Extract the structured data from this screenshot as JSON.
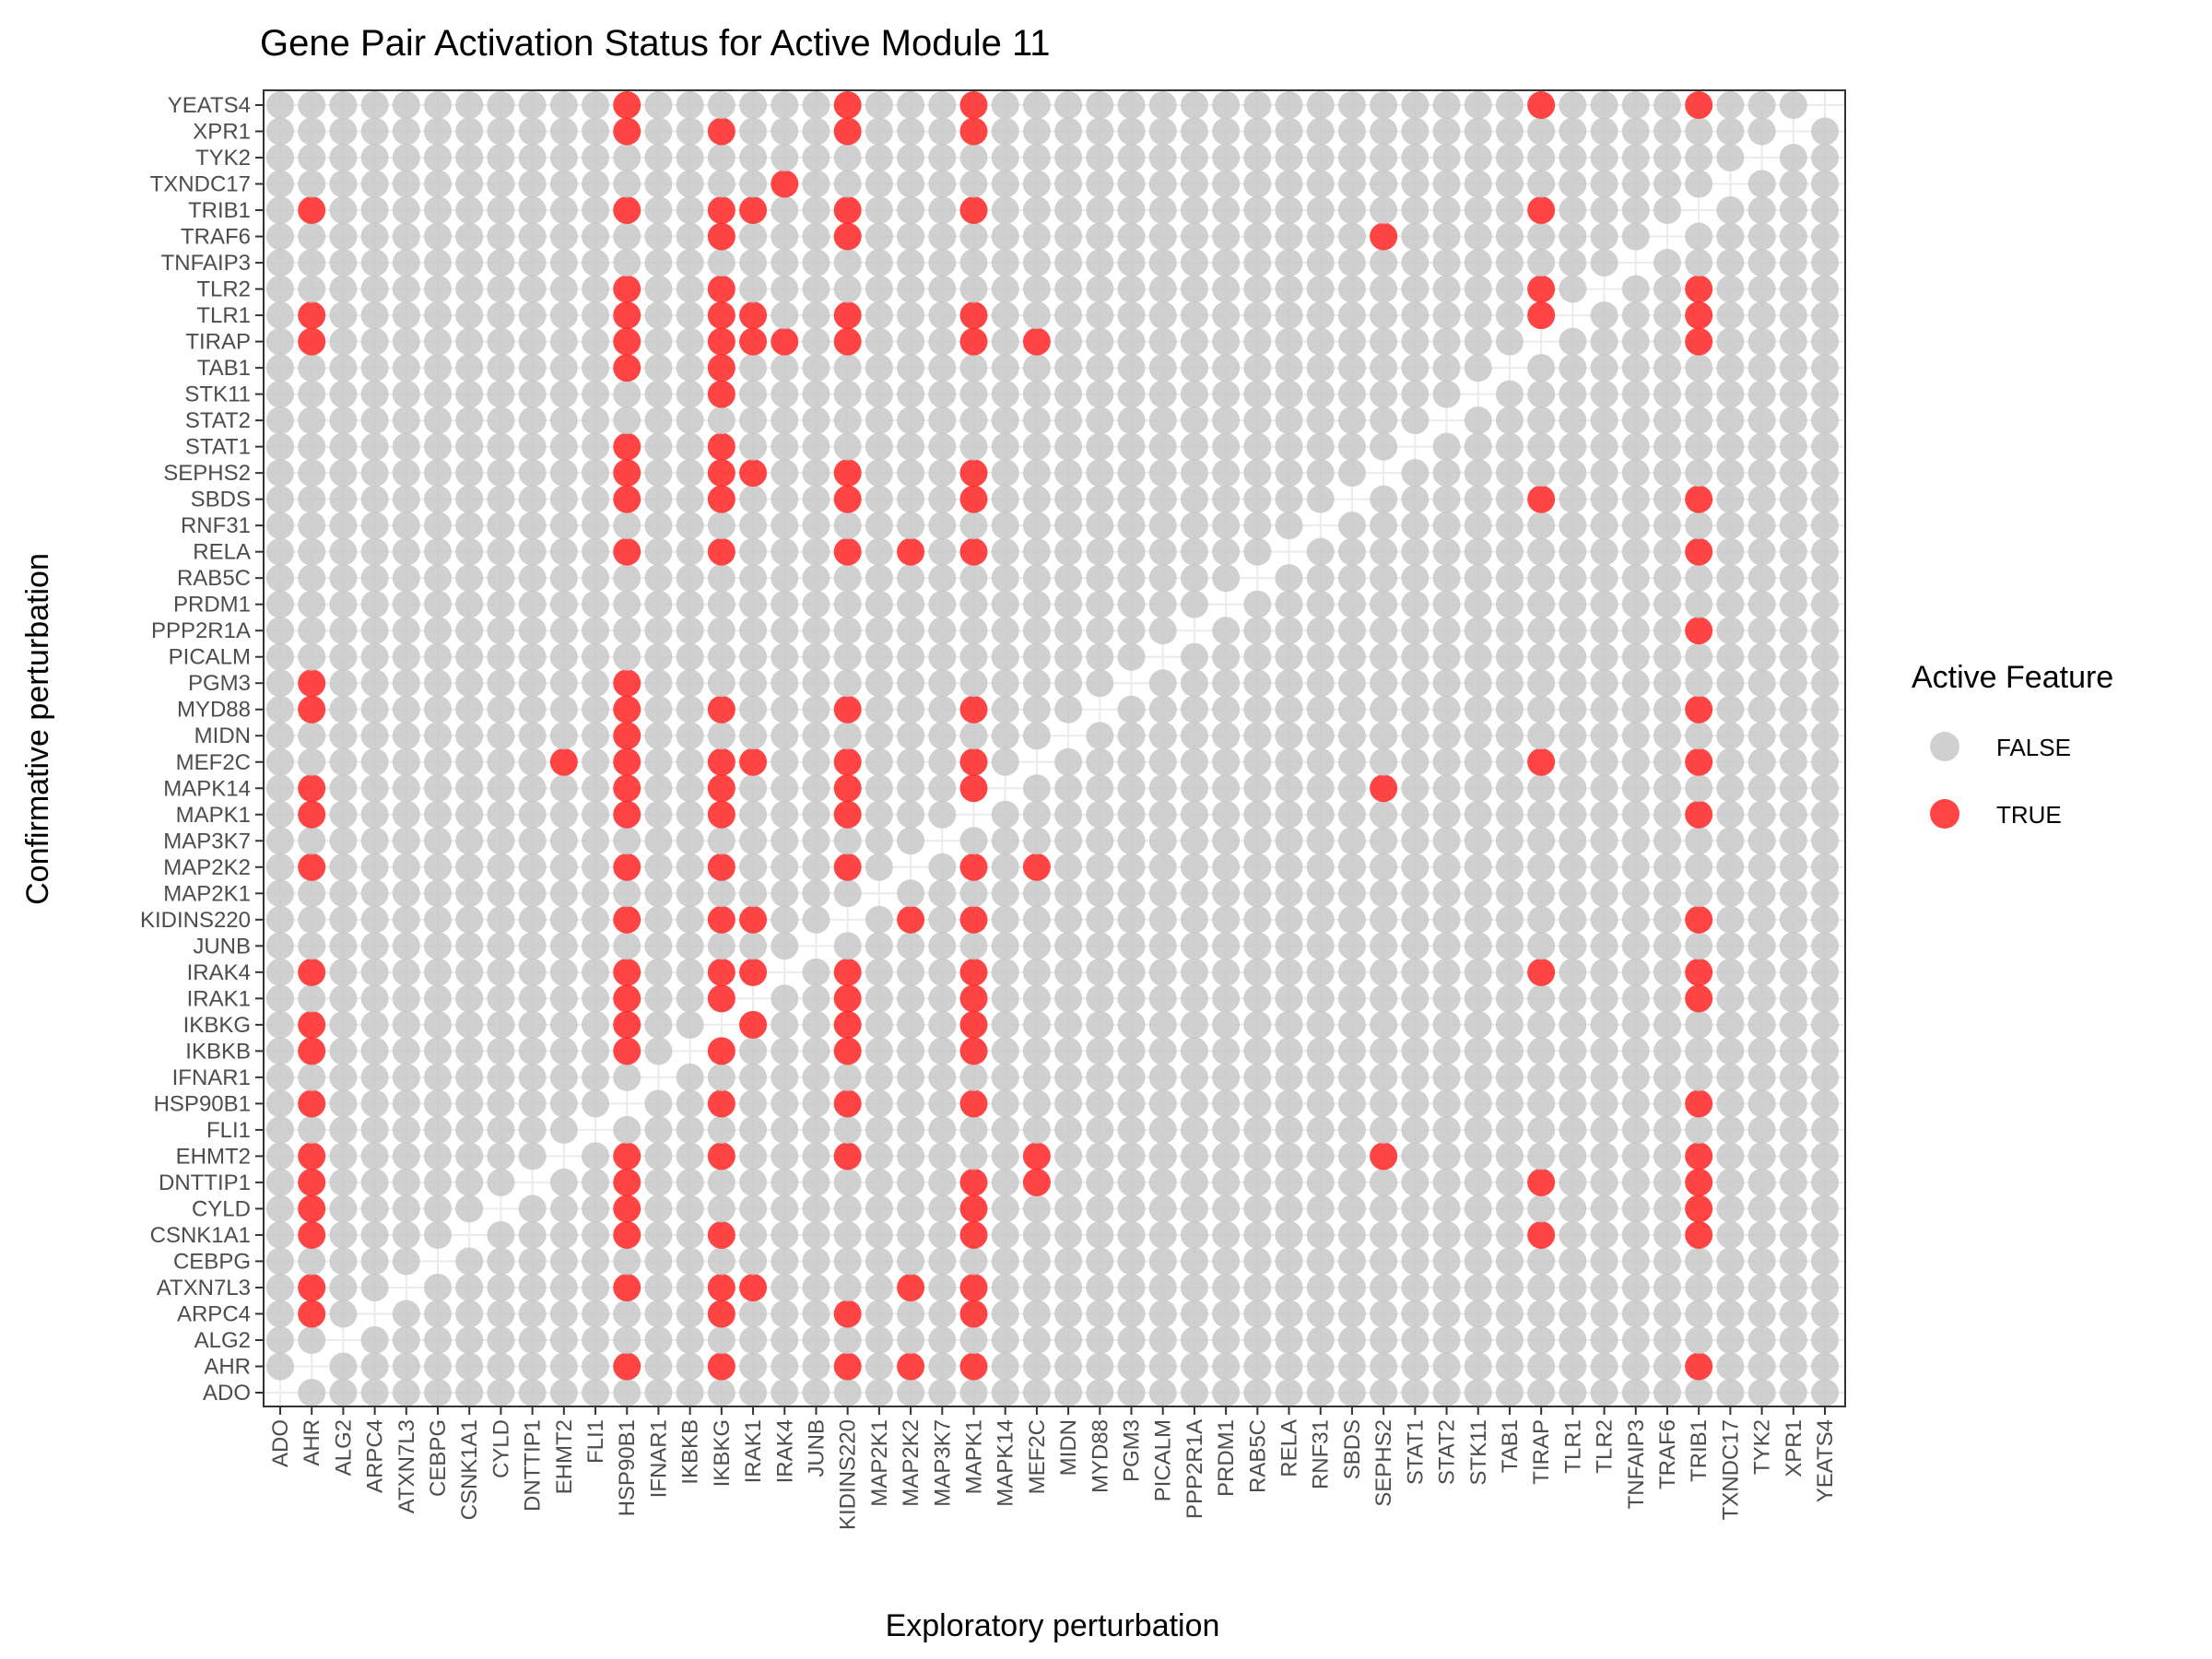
{
  "chart_data": {
    "type": "scatter",
    "title": "Gene Pair Activation Status for Active Module 11",
    "xlabel": "Exploratory perturbation",
    "ylabel": "Confirmative perturbation",
    "genes": [
      "ADO",
      "AHR",
      "ALG2",
      "ARPC4",
      "ATXN7L3",
      "CEBPG",
      "CSNK1A1",
      "CYLD",
      "DNTTIP1",
      "EHMT2",
      "FLI1",
      "HSP90B1",
      "IFNAR1",
      "IKBKB",
      "IKBKG",
      "IRAK1",
      "IRAK4",
      "JUNB",
      "KIDINS220",
      "MAP2K1",
      "MAP2K2",
      "MAP3K7",
      "MAPK1",
      "MAPK14",
      "MEF2C",
      "MIDN",
      "MYD88",
      "PGM3",
      "PICALM",
      "PPP2R1A",
      "PRDM1",
      "RAB5C",
      "RELA",
      "RNF31",
      "SBDS",
      "SEPHS2",
      "STAT1",
      "STAT2",
      "STK11",
      "TAB1",
      "TIRAP",
      "TLR1",
      "TLR2",
      "TNFAIP3",
      "TRAF6",
      "TRIB1",
      "TXNDC17",
      "TYK2",
      "XPR1",
      "YEATS4"
    ],
    "x_categories": [
      "ADO",
      "AHR",
      "ALG2",
      "ARPC4",
      "ATXN7L3",
      "CEBPG",
      "CSNK1A1",
      "CYLD",
      "DNTTIP1",
      "EHMT2",
      "FLI1",
      "HSP90B1",
      "IFNAR1",
      "IKBKB",
      "IKBKG",
      "IRAK1",
      "IRAK4",
      "JUNB",
      "KIDINS220",
      "MAP2K1",
      "MAP2K2",
      "MAP3K7",
      "MAPK1",
      "MAPK14",
      "MEF2C",
      "MIDN",
      "MYD88",
      "PGM3",
      "PICALM",
      "PPP2R1A",
      "PRDM1",
      "RAB5C",
      "RELA",
      "RNF31",
      "SBDS",
      "SEPHS2",
      "STAT1",
      "STAT2",
      "STK11",
      "TAB1",
      "TIRAP",
      "TLR1",
      "TLR2",
      "TNFAIP3",
      "TRAF6",
      "TRIB1",
      "TXNDC17",
      "TYK2",
      "XPR1",
      "YEATS4"
    ],
    "y_categories": [
      "ADO",
      "AHR",
      "ALG2",
      "ARPC4",
      "ATXN7L3",
      "CEBPG",
      "CSNK1A1",
      "CYLD",
      "DNTTIP1",
      "EHMT2",
      "FLI1",
      "HSP90B1",
      "IFNAR1",
      "IKBKB",
      "IKBKG",
      "IRAK1",
      "IRAK4",
      "JUNB",
      "KIDINS220",
      "MAP2K1",
      "MAP2K2",
      "MAP3K7",
      "MAPK1",
      "MAPK14",
      "MEF2C",
      "MIDN",
      "MYD88",
      "PGM3",
      "PICALM",
      "PPP2R1A",
      "PRDM1",
      "RAB5C",
      "RELA",
      "RNF31",
      "SBDS",
      "SEPHS2",
      "STAT1",
      "STAT2",
      "STK11",
      "TAB1",
      "TIRAP",
      "TLR1",
      "TLR2",
      "TNFAIP3",
      "TRAF6",
      "TRIB1",
      "TXNDC17",
      "TYK2",
      "XPR1",
      "YEATS4"
    ],
    "diagonal_excluded": true,
    "legend": {
      "title": "Active Feature",
      "position": "right",
      "entries": [
        {
          "label": "FALSE",
          "color": "#c8c8c8"
        },
        {
          "label": "TRUE",
          "color": "#ff2a2a"
        }
      ]
    },
    "grid": true,
    "true_points": {
      "YEATS4": [
        "HSP90B1",
        "KIDINS220",
        "MAPK1",
        "TIRAP",
        "TRIB1"
      ],
      "XPR1": [
        "HSP90B1",
        "IKBKG",
        "KIDINS220",
        "MAPK1"
      ],
      "TXNDC17": [
        "IRAK4"
      ],
      "TRIB1": [
        "AHR",
        "HSP90B1",
        "IKBKG",
        "IRAK1",
        "KIDINS220",
        "MAPK1",
        "TIRAP"
      ],
      "TRAF6": [
        "IKBKG",
        "KIDINS220",
        "SEPHS2"
      ],
      "TLR2": [
        "HSP90B1",
        "IKBKG",
        "TIRAP",
        "TRIB1"
      ],
      "TLR1": [
        "AHR",
        "HSP90B1",
        "IKBKG",
        "IRAK1",
        "KIDINS220",
        "MAPK1",
        "TIRAP",
        "TRIB1"
      ],
      "TIRAP": [
        "AHR",
        "HSP90B1",
        "IKBKG",
        "IRAK1",
        "IRAK4",
        "KIDINS220",
        "MAPK1",
        "MEF2C",
        "TRIB1"
      ],
      "TAB1": [
        "HSP90B1",
        "IKBKG"
      ],
      "STK11": [
        "IKBKG"
      ],
      "STAT1": [
        "HSP90B1",
        "IKBKG"
      ],
      "SEPHS2": [
        "HSP90B1",
        "IKBKG",
        "IRAK1",
        "KIDINS220",
        "MAPK1"
      ],
      "SBDS": [
        "HSP90B1",
        "IKBKG",
        "KIDINS220",
        "MAPK1",
        "TIRAP",
        "TRIB1"
      ],
      "RELA": [
        "HSP90B1",
        "IKBKG",
        "KIDINS220",
        "MAP2K2",
        "MAPK1",
        "TRIB1"
      ],
      "PPP2R1A": [
        "TRIB1"
      ],
      "PGM3": [
        "AHR",
        "HSP90B1"
      ],
      "MYD88": [
        "AHR",
        "HSP90B1",
        "IKBKG",
        "KIDINS220",
        "MAPK1",
        "TRIB1"
      ],
      "MIDN": [
        "HSP90B1"
      ],
      "MEF2C": [
        "EHMT2",
        "HSP90B1",
        "IKBKG",
        "IRAK1",
        "KIDINS220",
        "MAPK1",
        "TIRAP",
        "TRIB1"
      ],
      "MAPK14": [
        "AHR",
        "HSP90B1",
        "IKBKG",
        "KIDINS220",
        "MAPK1",
        "SEPHS2"
      ],
      "MAPK1": [
        "AHR",
        "HSP90B1",
        "IKBKG",
        "KIDINS220",
        "TRIB1"
      ],
      "MAP2K2": [
        "AHR",
        "HSP90B1",
        "IKBKG",
        "KIDINS220",
        "MAPK1",
        "MEF2C"
      ],
      "KIDINS220": [
        "HSP90B1",
        "IKBKG",
        "IRAK1",
        "MAP2K2",
        "MAPK1",
        "TRIB1"
      ],
      "IRAK4": [
        "AHR",
        "HSP90B1",
        "IKBKG",
        "IRAK1",
        "KIDINS220",
        "MAPK1",
        "TIRAP",
        "TRIB1"
      ],
      "IRAK1": [
        "HSP90B1",
        "IKBKG",
        "KIDINS220",
        "MAPK1",
        "TRIB1"
      ],
      "IKBKG": [
        "AHR",
        "HSP90B1",
        "IRAK1",
        "KIDINS220",
        "MAPK1"
      ],
      "IKBKB": [
        "AHR",
        "HSP90B1",
        "IKBKG",
        "KIDINS220",
        "MAPK1"
      ],
      "HSP90B1": [
        "AHR",
        "IKBKG",
        "KIDINS220",
        "MAPK1",
        "TRIB1"
      ],
      "EHMT2": [
        "AHR",
        "HSP90B1",
        "IKBKG",
        "KIDINS220",
        "MEF2C",
        "SEPHS2",
        "TRIB1"
      ],
      "DNTTIP1": [
        "AHR",
        "HSP90B1",
        "MAPK1",
        "MEF2C",
        "TIRAP",
        "TRIB1"
      ],
      "CYLD": [
        "AHR",
        "HSP90B1",
        "MAPK1",
        "TRIB1"
      ],
      "CSNK1A1": [
        "AHR",
        "HSP90B1",
        "IKBKG",
        "MAPK1",
        "TIRAP",
        "TRIB1"
      ],
      "ATXN7L3": [
        "AHR",
        "HSP90B1",
        "IKBKG",
        "IRAK1",
        "MAP2K2",
        "MAPK1"
      ],
      "ARPC4": [
        "AHR",
        "IKBKG",
        "KIDINS220",
        "MAPK1"
      ],
      "AHR": [
        "HSP90B1",
        "IKBKG",
        "KIDINS220",
        "MAP2K2",
        "MAPK1",
        "TRIB1"
      ]
    }
  }
}
